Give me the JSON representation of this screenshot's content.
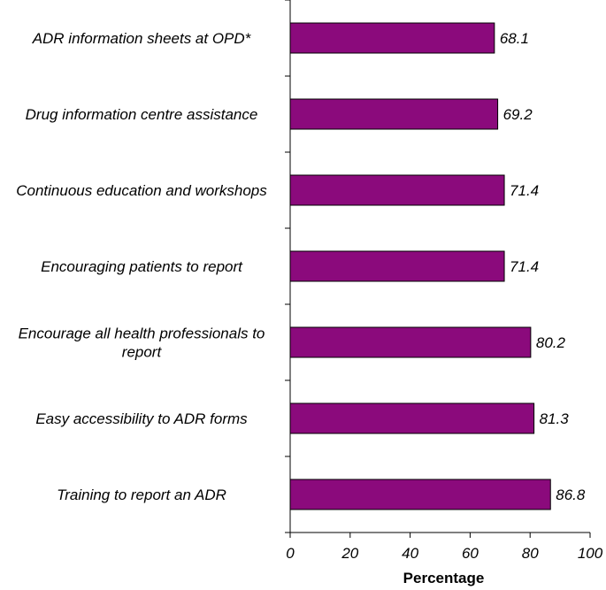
{
  "chart_data": {
    "type": "bar",
    "orientation": "horizontal",
    "title": "",
    "xlabel": "Percentage",
    "ylabel": "",
    "xlim": [
      0,
      100
    ],
    "xticks": [
      0,
      20,
      40,
      60,
      80,
      100
    ],
    "xtick_labels": [
      "0",
      "20",
      "40",
      "60",
      "80",
      "100"
    ],
    "grid": false,
    "bar_color": "#8B0A7C",
    "categories": [
      [
        "ADR information sheets at OPD*"
      ],
      [
        "Drug information centre assistance"
      ],
      [
        "Continuous education and workshops"
      ],
      [
        "Encouraging patients to report"
      ],
      [
        "Encourage all health professionals to",
        "report"
      ],
      [
        "Easy accessibility to ADR forms"
      ],
      [
        "Training to report an ADR"
      ]
    ],
    "values": [
      68.1,
      69.2,
      71.4,
      71.4,
      80.2,
      81.3,
      86.8
    ],
    "value_labels": [
      "68.1",
      "69.2",
      "71.4",
      "71.4",
      "80.2",
      "81.3",
      "86.8"
    ]
  }
}
